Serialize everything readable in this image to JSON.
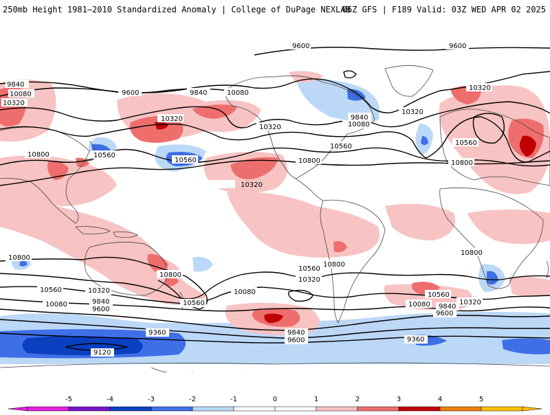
{
  "header": {
    "title_left": "250mb Height 1981–2010 Standardized Anomaly | College of DuPage NEXLAB",
    "title_right": "06Z GFS | F189 Valid: 03Z WED APR 02 2025"
  },
  "map": {
    "contour_labels": [
      "9600",
      "9600",
      "9600",
      "9840",
      "10080",
      "10320",
      "9840",
      "10080",
      "10320",
      "10560",
      "10800",
      "10560",
      "10320",
      "10080",
      "10320",
      "9840",
      "10080",
      "10560",
      "10800",
      "10320",
      "10560",
      "10800",
      "10560",
      "10800",
      "10800",
      "10560",
      "10320",
      "10080",
      "9840",
      "9600",
      "9360",
      "9120",
      "10800",
      "10560",
      "10320",
      "10080",
      "9840",
      "9600",
      "9360",
      "10800",
      "10560",
      "10320",
      "10080",
      "9840",
      "9600",
      "10320"
    ],
    "anomaly_colors": {
      "-5": "#e020e0",
      "-4": "#7a12c8",
      "-3": "#0a3fbf",
      "-2": "#3f6fe6",
      "-1": "#bcd8f7",
      "0": "#ffffff",
      "1": "#f7c3c3",
      "2": "#ee6e6e",
      "3": "#c00000",
      "4": "#f08000",
      "5": "#ffc000"
    }
  },
  "colorbar": {
    "ticks": [
      "-5",
      "-4",
      "-3",
      "-2",
      "-1",
      "0",
      "1",
      "2",
      "3",
      "4",
      "5"
    ],
    "colors": [
      "#e020e0",
      "#7a12c8",
      "#0a3fbf",
      "#3f6fe6",
      "#bcd8f7",
      "#ffffff",
      "#ffffff",
      "#f7c3c3",
      "#ee6e6e",
      "#c00000",
      "#f08000",
      "#ffc000"
    ]
  }
}
